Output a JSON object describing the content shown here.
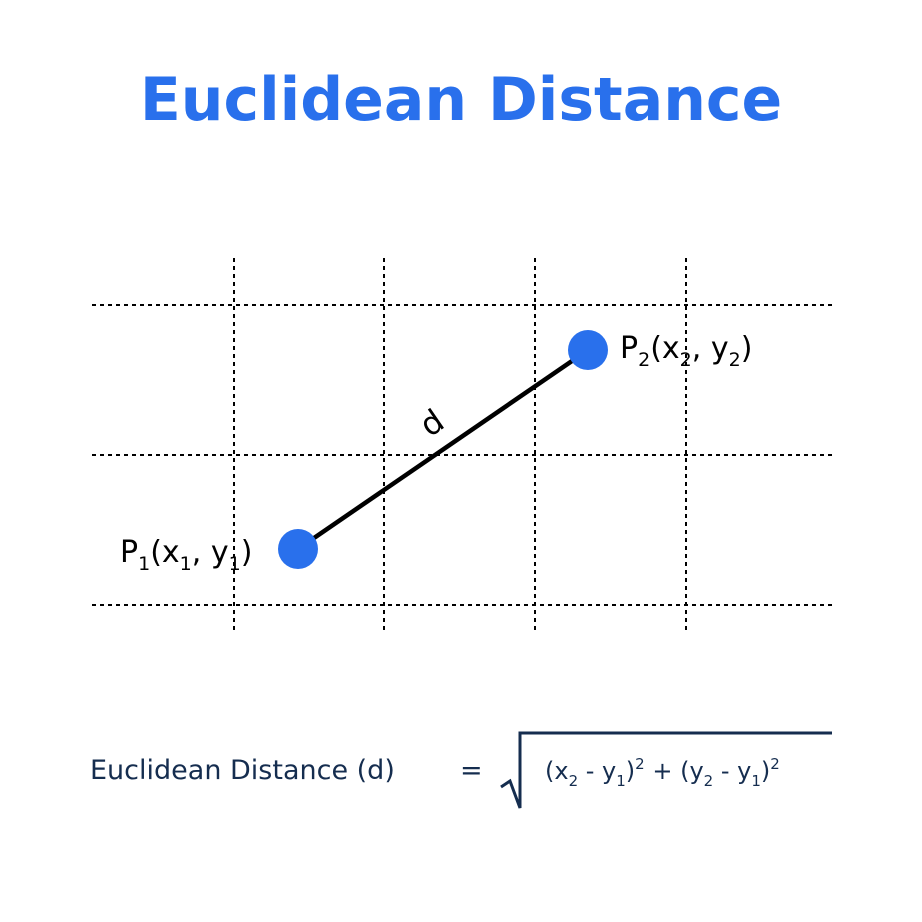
{
  "title": "Euclidean Distance",
  "colors": {
    "title": "#2970ec",
    "point": "#2970ec",
    "line": "#000000",
    "grid": "#000000",
    "formula": "#152d4f"
  },
  "points": {
    "p1": {
      "name": "P",
      "index": "1",
      "open": "(",
      "x": "x",
      "x_index": "1",
      "sep": ", ",
      "y": "y",
      "y_index": "1",
      "close": ")"
    },
    "p2": {
      "name": "P",
      "index": "2",
      "open": "(",
      "x": "x",
      "x_index": "2",
      "sep": ", ",
      "y": "y",
      "y_index": "2",
      "close": ")"
    }
  },
  "distance_label": "d",
  "formula": {
    "label": "Euclidean Distance (d)",
    "equals": "=",
    "t1": "(x",
    "s1": "2",
    "t2": " - y",
    "s2": "1",
    "t3": ")",
    "e1": "2",
    "t4": " + (y",
    "s3": "2",
    "t5": " - y",
    "s4": "1",
    "t6": ")",
    "e2": "2"
  }
}
